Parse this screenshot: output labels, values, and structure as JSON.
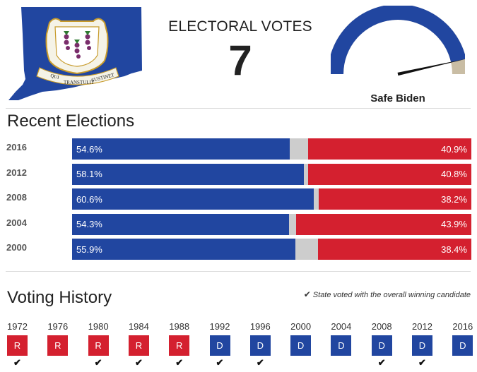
{
  "header": {
    "ev_label": "ELECTORAL VOTES",
    "ev_count": "7",
    "rating": "Safe Biden",
    "gauge": {
      "level": 0.93,
      "fill_color": "#2146a0",
      "rest_color": "#c9bda4"
    },
    "flag": {
      "field_color": "#2146a0",
      "banner_text": "QUI TRANSTULIT SUSTINET",
      "banner_words": [
        "QUI",
        "TRANSTULIT",
        "SUSTINET"
      ]
    }
  },
  "recent": {
    "title": "Recent Elections",
    "rows": [
      {
        "year": "2016",
        "dem": 54.6,
        "rep": 40.9,
        "dem_label": "54.6%",
        "rep_label": "40.9%"
      },
      {
        "year": "2012",
        "dem": 58.1,
        "rep": 40.8,
        "dem_label": "58.1%",
        "rep_label": "40.8%"
      },
      {
        "year": "2008",
        "dem": 60.6,
        "rep": 38.2,
        "dem_label": "60.6%",
        "rep_label": "38.2%"
      },
      {
        "year": "2004",
        "dem": 54.3,
        "rep": 43.9,
        "dem_label": "54.3%",
        "rep_label": "43.9%"
      },
      {
        "year": "2000",
        "dem": 55.9,
        "rep": 38.4,
        "dem_label": "55.9%",
        "rep_label": "38.4%"
      }
    ],
    "colors": {
      "dem": "#2146a0",
      "rep": "#d4202f",
      "other": "#cdcdcd"
    }
  },
  "history": {
    "title": "Voting History",
    "legend": "State voted with the overall winning candidate",
    "items": [
      {
        "year": "1972",
        "party": "R",
        "winner": true
      },
      {
        "year": "1976",
        "party": "R",
        "winner": false
      },
      {
        "year": "1980",
        "party": "R",
        "winner": true
      },
      {
        "year": "1984",
        "party": "R",
        "winner": true
      },
      {
        "year": "1988",
        "party": "R",
        "winner": true
      },
      {
        "year": "1992",
        "party": "D",
        "winner": true
      },
      {
        "year": "1996",
        "party": "D",
        "winner": true
      },
      {
        "year": "2000",
        "party": "D",
        "winner": false
      },
      {
        "year": "2004",
        "party": "D",
        "winner": false
      },
      {
        "year": "2008",
        "party": "D",
        "winner": true
      },
      {
        "year": "2012",
        "party": "D",
        "winner": true
      },
      {
        "year": "2016",
        "party": "D",
        "winner": false
      }
    ]
  }
}
